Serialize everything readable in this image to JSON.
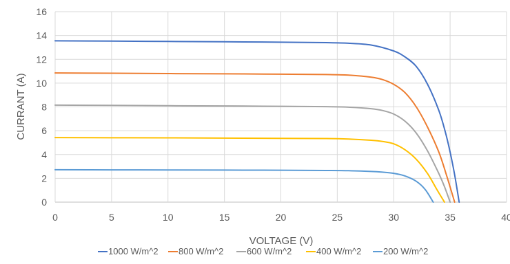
{
  "chart_data": {
    "type": "line",
    "title": "",
    "xlabel": "VOLTAGE (V)",
    "ylabel": "CURRANT (A)",
    "xlim": [
      0,
      40
    ],
    "ylim": [
      0,
      16
    ],
    "x_ticks": [
      0,
      5,
      10,
      15,
      20,
      25,
      30,
      35,
      40
    ],
    "y_ticks": [
      0,
      2,
      4,
      6,
      8,
      10,
      12,
      14,
      16
    ],
    "grid": {
      "x": true,
      "y": true
    },
    "legend_position": "bottom",
    "series": [
      {
        "name": "1000 W/m^2",
        "color": "#4472c4",
        "points": [
          [
            0,
            13.55
          ],
          [
            5,
            13.53
          ],
          [
            10,
            13.5
          ],
          [
            15,
            13.47
          ],
          [
            20,
            13.44
          ],
          [
            24,
            13.4
          ],
          [
            26,
            13.35
          ],
          [
            28,
            13.2
          ],
          [
            30,
            12.7
          ],
          [
            31,
            12.2
          ],
          [
            32,
            11.4
          ],
          [
            33,
            9.9
          ],
          [
            34,
            7.7
          ],
          [
            34.6,
            5.8
          ],
          [
            35,
            4.2
          ],
          [
            35.4,
            2.3
          ],
          [
            35.8,
            0
          ]
        ]
      },
      {
        "name": "800 W/m^2",
        "color": "#ed7d31",
        "points": [
          [
            0,
            10.85
          ],
          [
            5,
            10.83
          ],
          [
            10,
            10.8
          ],
          [
            15,
            10.78
          ],
          [
            20,
            10.75
          ],
          [
            24,
            10.72
          ],
          [
            26,
            10.67
          ],
          [
            28,
            10.5
          ],
          [
            29,
            10.3
          ],
          [
            30,
            9.9
          ],
          [
            31,
            9.2
          ],
          [
            32,
            8.0
          ],
          [
            33,
            6.3
          ],
          [
            34,
            4.2
          ],
          [
            34.7,
            2.2
          ],
          [
            35.4,
            0
          ]
        ]
      },
      {
        "name": "600 W/m^2",
        "color": "#a5a5a5",
        "points": [
          [
            0,
            8.15
          ],
          [
            5,
            8.13
          ],
          [
            10,
            8.1
          ],
          [
            15,
            8.08
          ],
          [
            20,
            8.05
          ],
          [
            24,
            8.02
          ],
          [
            26,
            7.98
          ],
          [
            28,
            7.85
          ],
          [
            29,
            7.7
          ],
          [
            30,
            7.4
          ],
          [
            31,
            6.8
          ],
          [
            32,
            5.8
          ],
          [
            33,
            4.3
          ],
          [
            34,
            2.4
          ],
          [
            34.5,
            1.3
          ],
          [
            35.0,
            0
          ]
        ]
      },
      {
        "name": "400 W/m^2",
        "color": "#ffc000",
        "points": [
          [
            0,
            5.42
          ],
          [
            5,
            5.41
          ],
          [
            10,
            5.4
          ],
          [
            15,
            5.38
          ],
          [
            20,
            5.36
          ],
          [
            24,
            5.34
          ],
          [
            26,
            5.3
          ],
          [
            28,
            5.2
          ],
          [
            29,
            5.1
          ],
          [
            30,
            4.9
          ],
          [
            31,
            4.4
          ],
          [
            32,
            3.6
          ],
          [
            33,
            2.4
          ],
          [
            33.8,
            1.1
          ],
          [
            34.5,
            0
          ]
        ]
      },
      {
        "name": "200 W/m^2",
        "color": "#5b9bd5",
        "points": [
          [
            0,
            2.72
          ],
          [
            5,
            2.71
          ],
          [
            10,
            2.7
          ],
          [
            15,
            2.69
          ],
          [
            20,
            2.68
          ],
          [
            24,
            2.66
          ],
          [
            26,
            2.64
          ],
          [
            28,
            2.58
          ],
          [
            29,
            2.52
          ],
          [
            30,
            2.42
          ],
          [
            31,
            2.2
          ],
          [
            32,
            1.75
          ],
          [
            32.8,
            1.05
          ],
          [
            33.5,
            0
          ]
        ]
      }
    ]
  }
}
